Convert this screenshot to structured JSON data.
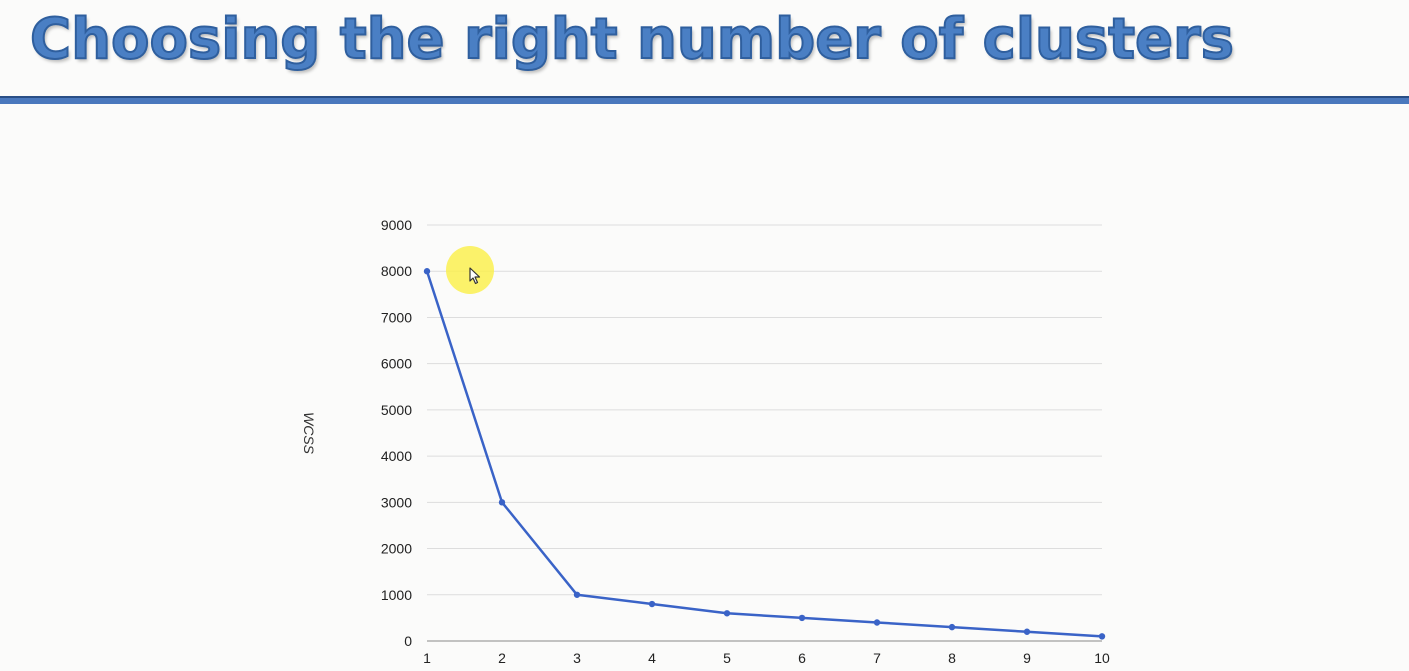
{
  "slide": {
    "title": "Choosing the right number of clusters"
  },
  "colors": {
    "title": "#4a7fc4",
    "title_outline": "#2f5f9e",
    "rule": "#4a78bd",
    "line": "#3a63c7",
    "grid": "#dddddd",
    "cursor_halo": "#faf050"
  },
  "chart_data": {
    "type": "line",
    "title": "",
    "xlabel": "",
    "ylabel": "WCSS",
    "x": [
      1,
      2,
      3,
      4,
      5,
      6,
      7,
      8,
      9,
      10
    ],
    "series": [
      {
        "values": [
          8000,
          3000,
          1000,
          800,
          600,
          500,
          400,
          300,
          200,
          100
        ]
      }
    ],
    "xlim": [
      1,
      10
    ],
    "ylim": [
      0,
      9000
    ],
    "yticks": [
      0,
      1000,
      2000,
      3000,
      4000,
      5000,
      6000,
      7000,
      8000,
      9000
    ],
    "xticks": [
      1,
      2,
      3,
      4,
      5,
      6,
      7,
      8,
      9,
      10
    ],
    "grid": "horizontal",
    "legend": "none",
    "markers": true
  }
}
